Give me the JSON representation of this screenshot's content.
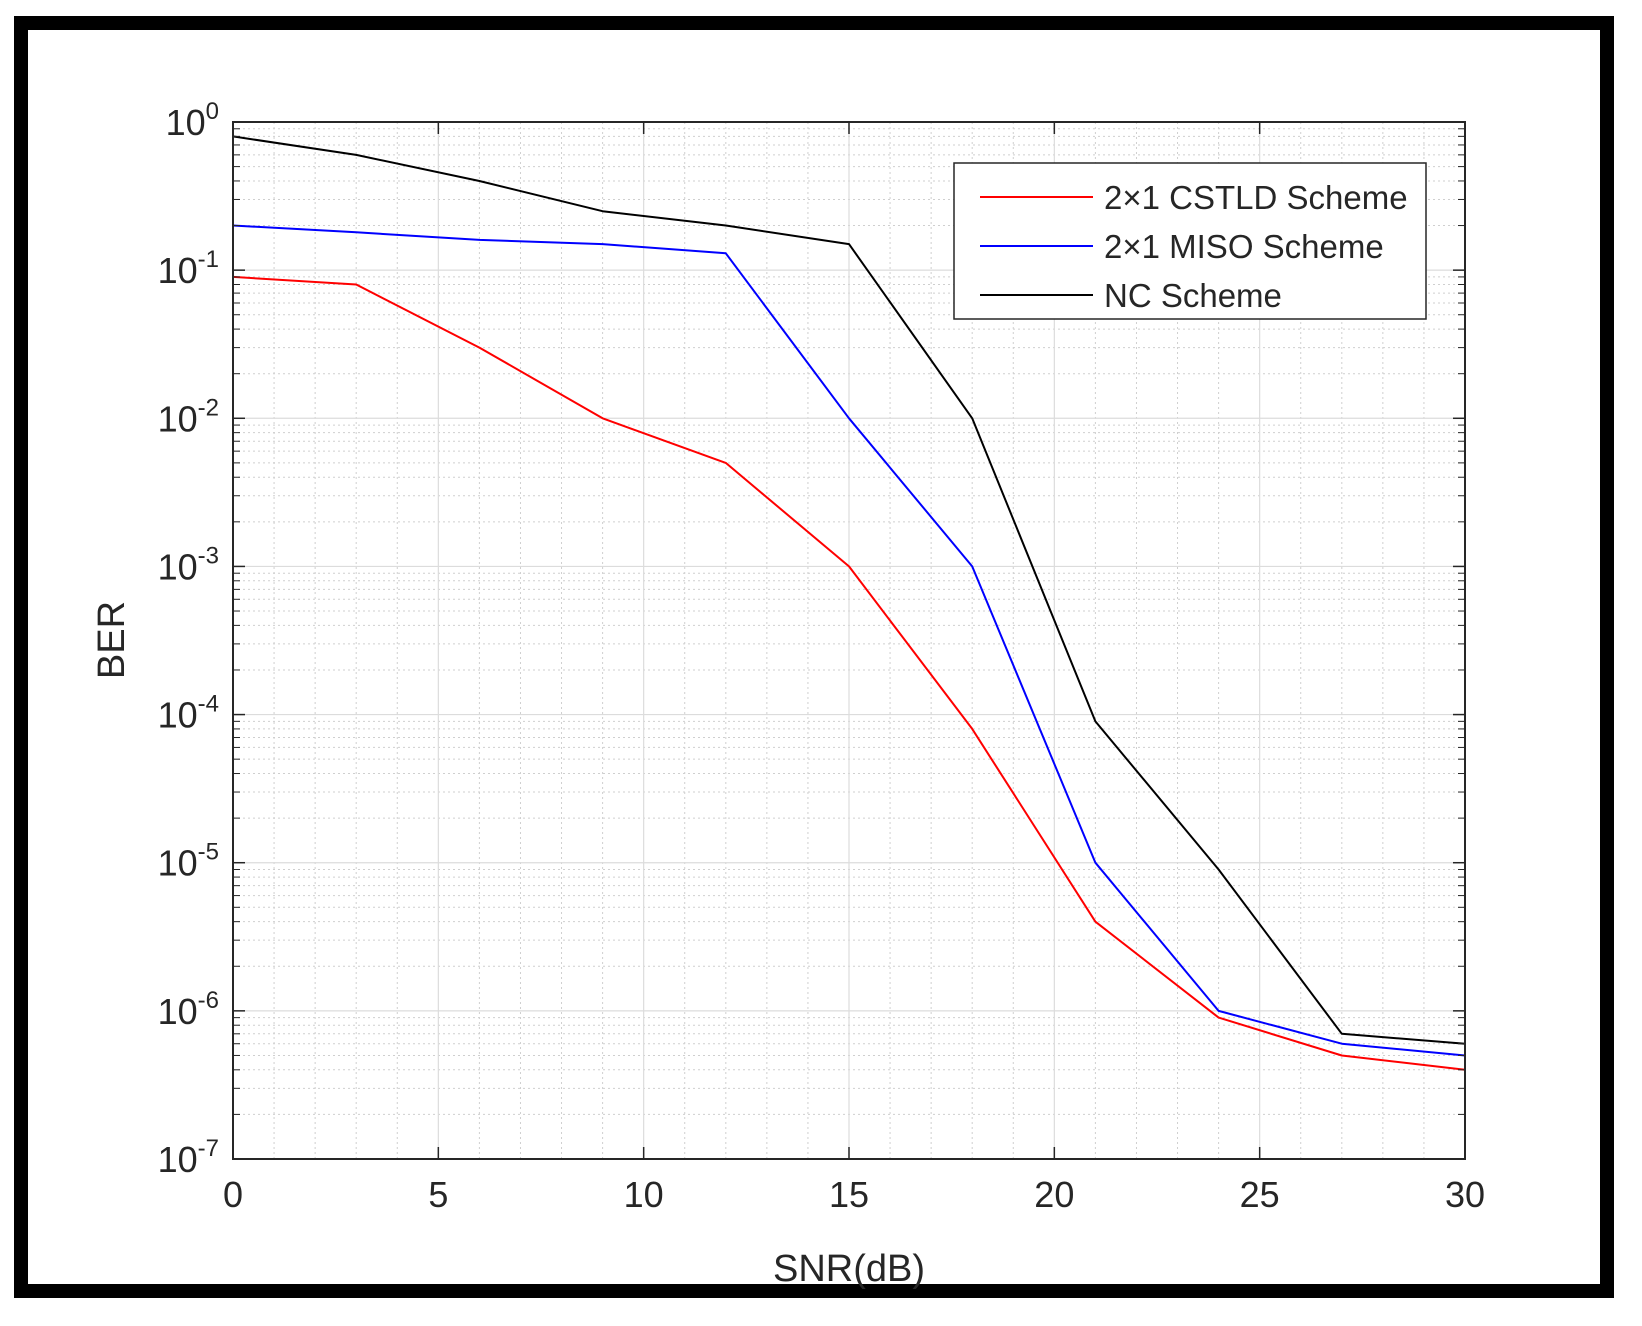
{
  "chart_data": {
    "type": "line",
    "title": "",
    "xlabel": "SNR(dB)",
    "ylabel": "BER",
    "yscale": "log",
    "xlim": [
      0,
      30
    ],
    "ylim": [
      1e-07,
      1
    ],
    "grid": true,
    "legend_position": "top-right",
    "x_ticks": [
      0,
      5,
      10,
      15,
      20,
      25,
      30
    ],
    "x_tick_labels": [
      "0",
      "5",
      "10",
      "15",
      "20",
      "25",
      "30"
    ],
    "y_ticks": [
      {
        "value": 1,
        "base": "10",
        "exp": "0"
      },
      {
        "value": 0.1,
        "base": "10",
        "exp": "-1"
      },
      {
        "value": 0.01,
        "base": "10",
        "exp": "-2"
      },
      {
        "value": 0.001,
        "base": "10",
        "exp": "-3"
      },
      {
        "value": 0.0001,
        "base": "10",
        "exp": "-4"
      },
      {
        "value": 1e-05,
        "base": "10",
        "exp": "-5"
      },
      {
        "value": 1e-06,
        "base": "10",
        "exp": "-6"
      },
      {
        "value": 1e-07,
        "base": "10",
        "exp": "-7"
      }
    ],
    "x": [
      0,
      3,
      6,
      9,
      12,
      15,
      18,
      21,
      24,
      27,
      30
    ],
    "series": [
      {
        "name": "2×1 CSTLD Scheme",
        "color": "#ff0000",
        "values": [
          0.09,
          0.08,
          0.03,
          0.01,
          0.005,
          0.001,
          8e-05,
          4e-06,
          9e-07,
          5e-07,
          4e-07
        ]
      },
      {
        "name": "2×1 MISO Scheme",
        "color": "#0000ff",
        "values": [
          0.2,
          0.18,
          0.16,
          0.15,
          0.13,
          0.01,
          0.001,
          1e-05,
          1e-06,
          6e-07,
          5e-07
        ]
      },
      {
        "name": "NC Scheme",
        "color": "#000000",
        "values": [
          0.8,
          0.6,
          0.4,
          0.25,
          0.2,
          0.15,
          0.01,
          9e-05,
          9e-06,
          7e-07,
          6e-07
        ]
      }
    ]
  }
}
